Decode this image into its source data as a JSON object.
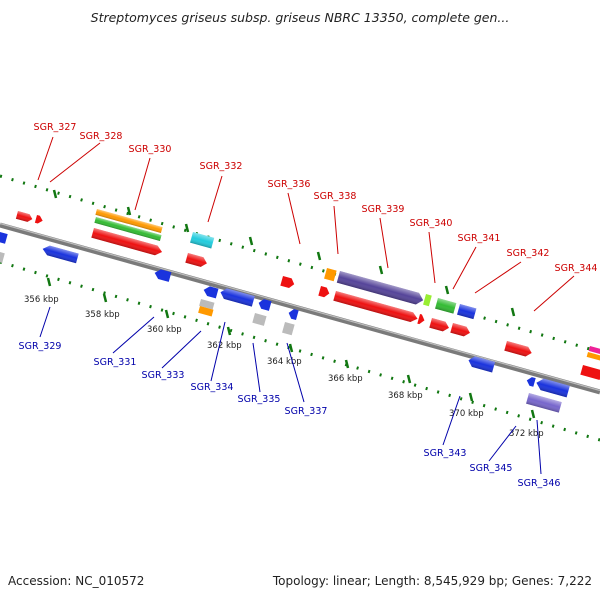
{
  "title": "Streptomyces griseus subsp. griseus NBRC 13350, complete gen...",
  "footer": {
    "accession": "Accession: NC_010572",
    "topology": "Topology: linear; Length: 8,545,929 bp; Genes: 7,222"
  },
  "scale_unit": "kbp",
  "scale_ticks": [
    356,
    358,
    360,
    362,
    364,
    366,
    368,
    370,
    372
  ],
  "colors": {
    "label_top": "#cc0000",
    "label_bottom": "#0000aa",
    "dots": "#117711",
    "backbone": "#7a7a7a",
    "red": "#ee1111",
    "blue": "#1a33dd",
    "orange": "#ff9900",
    "green": "#33bb33",
    "lime": "#99ee33",
    "cyan": "#22ccdd",
    "navy": "#554499",
    "lavender": "#7766cc",
    "gray": "#bbbbbb",
    "magenta": "#ee2299"
  },
  "top_labels": [
    "SGR_327",
    "SGR_328",
    "SGR_330",
    "SGR_332",
    "SGR_336",
    "SGR_338",
    "SGR_339",
    "SGR_340",
    "SGR_341",
    "SGR_342",
    "SGR_344"
  ],
  "bottom_labels": [
    "SGR_329",
    "SGR_331",
    "SGR_333",
    "SGR_334",
    "SGR_335",
    "SGR_337",
    "SGR_343",
    "SGR_345",
    "SGR_346"
  ]
}
